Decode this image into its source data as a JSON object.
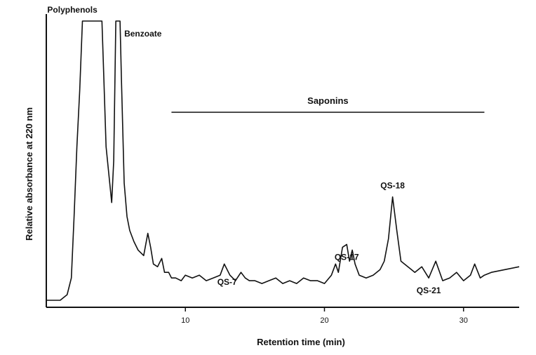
{
  "chart_data": {
    "type": "line",
    "xlabel": "Retention time (min)",
    "ylabel": "Relative absorbance at 220 nm",
    "x_ticks": [
      10,
      20,
      30
    ],
    "xlim": [
      0,
      34
    ],
    "ylim": [
      0,
      1
    ],
    "grid": false,
    "region": {
      "label": "Saponins",
      "x_range": [
        9,
        31.5
      ]
    },
    "annotations": [
      {
        "text": "Polyphenols",
        "x": 3.2
      },
      {
        "text": "Benzoate",
        "x": 5.2
      },
      {
        "text": "QS-18",
        "x": 24.9
      },
      {
        "text": "QS-7",
        "x": 13.0
      },
      {
        "text": "QS-17",
        "x": 21.6
      },
      {
        "text": "QS-21",
        "x": 27.5
      }
    ],
    "series": [
      {
        "x": [
          0,
          1,
          1.5,
          1.8,
          2.0,
          2.2,
          2.4,
          2.6,
          3.0,
          3.5,
          4.0,
          4.1,
          4.3,
          4.5,
          4.7,
          4.85,
          5.0,
          5.1,
          5.2,
          5.3,
          5.4,
          5.6,
          5.8,
          6.0,
          6.3,
          6.6,
          7.0,
          7.3,
          7.5,
          7.7,
          8.0,
          8.3,
          8.5,
          8.8,
          9.0,
          9.3,
          9.7,
          10,
          10.5,
          11,
          11.5,
          12,
          12.5,
          12.8,
          13.2,
          13.6,
          14,
          14.3,
          14.6,
          15,
          15.5,
          16,
          16.5,
          17,
          17.5,
          18,
          18.5,
          19,
          19.5,
          20,
          20.5,
          20.8,
          21.0,
          21.3,
          21.6,
          21.8,
          22.0,
          22.2,
          22.5,
          23,
          23.5,
          24,
          24.3,
          24.6,
          24.9,
          25.2,
          25.5,
          26,
          26.5,
          27,
          27.5,
          28,
          28.5,
          29,
          29.5,
          30,
          30.5,
          30.8,
          31.2,
          31.5,
          32,
          33,
          34
        ],
        "y": [
          0,
          0,
          0.02,
          0.08,
          0.3,
          0.55,
          0.75,
          1,
          1,
          1,
          1,
          0.85,
          0.55,
          0.45,
          0.35,
          0.5,
          1,
          1,
          1,
          1,
          0.8,
          0.42,
          0.3,
          0.25,
          0.21,
          0.18,
          0.16,
          0.24,
          0.19,
          0.13,
          0.12,
          0.15,
          0.1,
          0.1,
          0.08,
          0.08,
          0.07,
          0.09,
          0.08,
          0.09,
          0.07,
          0.08,
          0.09,
          0.13,
          0.09,
          0.07,
          0.1,
          0.08,
          0.07,
          0.07,
          0.06,
          0.07,
          0.08,
          0.06,
          0.07,
          0.06,
          0.08,
          0.07,
          0.07,
          0.06,
          0.09,
          0.13,
          0.1,
          0.19,
          0.2,
          0.14,
          0.18,
          0.13,
          0.09,
          0.08,
          0.09,
          0.11,
          0.14,
          0.22,
          0.37,
          0.25,
          0.14,
          0.12,
          0.1,
          0.12,
          0.08,
          0.14,
          0.07,
          0.08,
          0.1,
          0.07,
          0.09,
          0.13,
          0.08,
          0.09,
          0.1,
          0.11,
          0.12
        ]
      }
    ]
  }
}
